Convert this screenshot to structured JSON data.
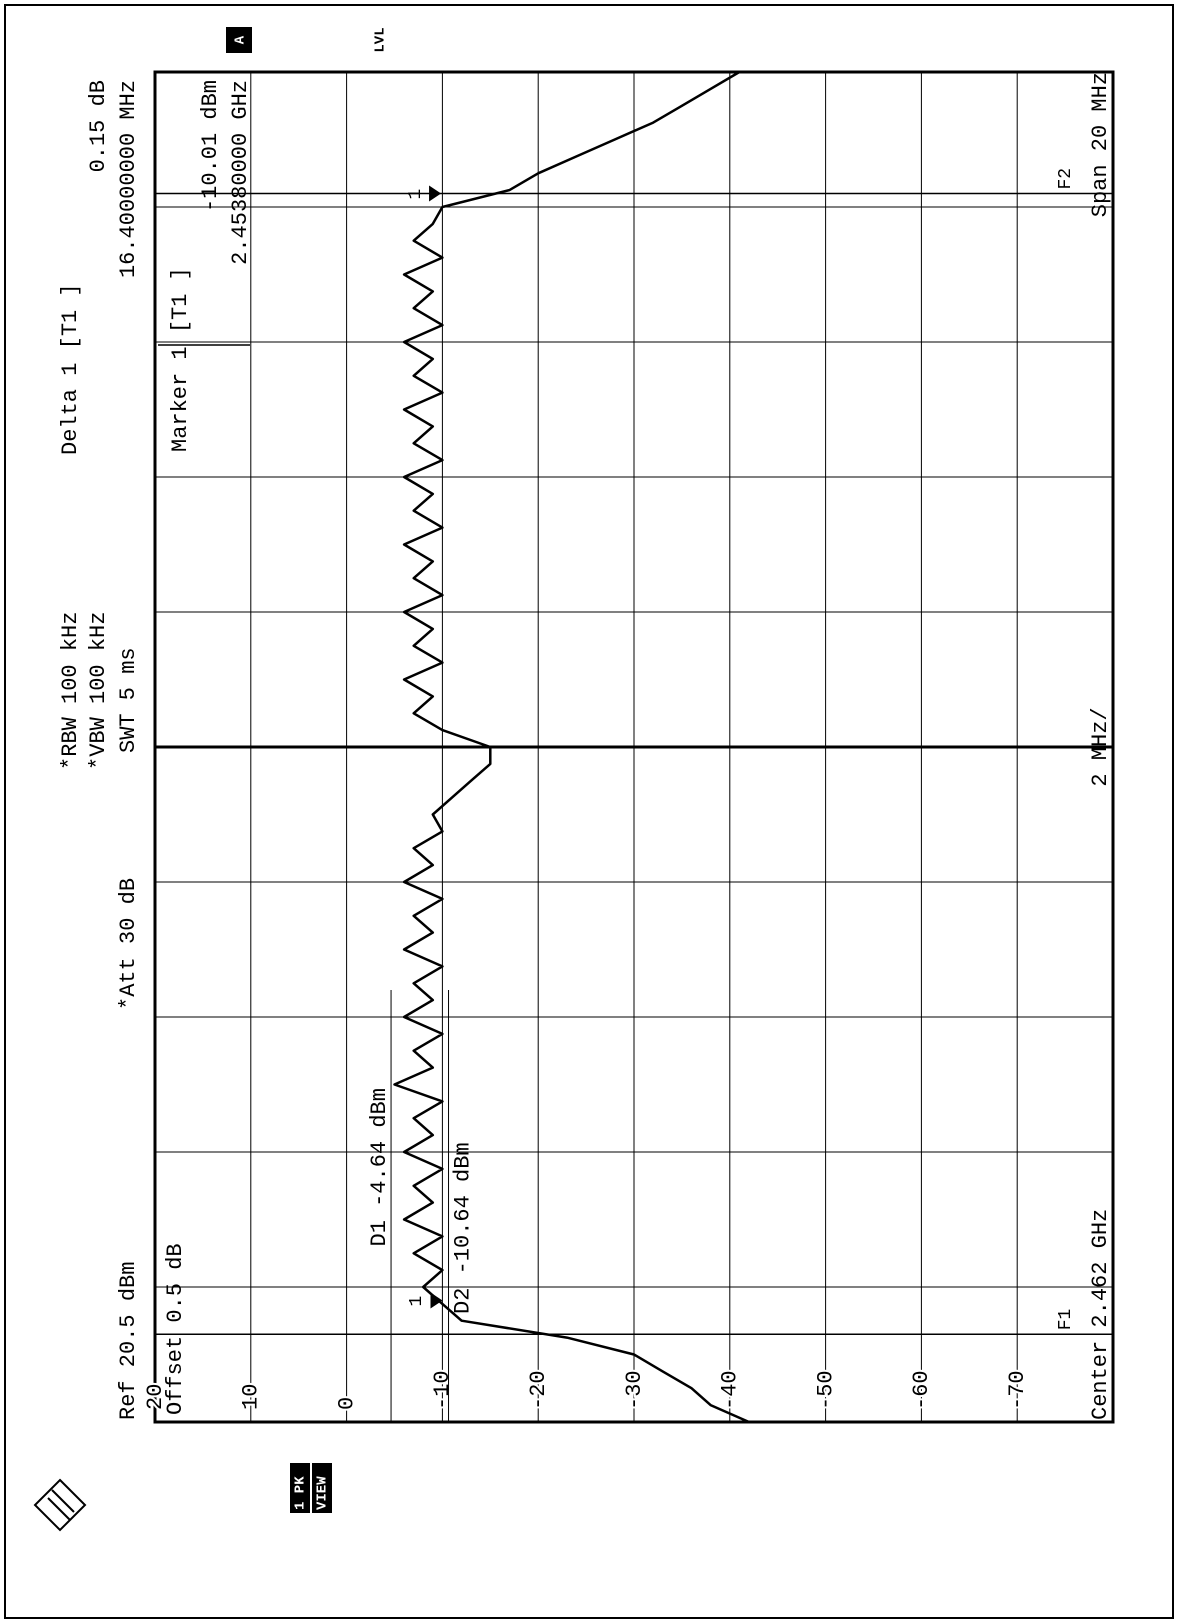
{
  "chart_data": {
    "type": "line",
    "ref_level": "Ref 20.5 dBm",
    "offset": "Offset 0.5 dB",
    "attenuation": "*Att 30 dB",
    "rbw": "*RBW 100 kHz",
    "vbw": "*VBW 100 kHz",
    "sweep_time": "SWT 5 ms",
    "delta_marker": {
      "title": "Delta 1 [T1 ]",
      "level": "0.15 dB",
      "frequency": "16.40000000 MHz"
    },
    "marker_readout": {
      "title": "Marker 1 [T1 ]",
      "level": "-10.01 dBm",
      "frequency": "2.45380000 GHz"
    },
    "center": "Center 2.462 GHz",
    "scale": "2 MHz/",
    "span": "Span 20 MHz",
    "screen": "A",
    "level_flag": "LVL",
    "trace": "1 PK",
    "trace_mode": "VIEW",
    "markers": [
      {
        "label": "1",
        "x": 2.4538,
        "y": -10.01
      },
      {
        "label": "1",
        "x": 2.4702,
        "y": -9.86
      }
    ],
    "display_lines": [
      {
        "label": "D1 -4.64 dBm",
        "value": -4.64
      },
      {
        "label": "D2 -10.64 dBm",
        "value": -10.64
      }
    ],
    "frequency_lines": [
      {
        "label": "F1",
        "value": 2.4533
      },
      {
        "label": "F2",
        "value": 2.4702
      }
    ],
    "xlim": [
      2.452,
      2.472
    ],
    "ylim": [
      -80,
      20
    ],
    "yticks": [
      20,
      10,
      0,
      -10,
      -20,
      -30,
      -40,
      -50,
      -60,
      -70
    ],
    "grid": true,
    "color": "#000000",
    "x": [
      2.452,
      2.45225,
      2.4525,
      2.45275,
      2.453,
      2.45325,
      2.4535,
      2.45375,
      2.454,
      2.45425,
      2.4545,
      2.45475,
      2.455,
      2.45525,
      2.4555,
      2.45575,
      2.456,
      2.45625,
      2.4565,
      2.45675,
      2.457,
      2.45725,
      2.4575,
      2.45775,
      2.458,
      2.45825,
      2.4585,
      2.45875,
      2.459,
      2.45925,
      2.4595,
      2.45975,
      2.46,
      2.46025,
      2.4605,
      2.46075,
      2.461,
      2.46125,
      2.4615,
      2.46175,
      2.462,
      2.46225,
      2.4625,
      2.46275,
      2.463,
      2.46325,
      2.4635,
      2.46375,
      2.464,
      2.46425,
      2.4645,
      2.46475,
      2.465,
      2.46525,
      2.4655,
      2.46575,
      2.466,
      2.46625,
      2.4665,
      2.46675,
      2.467,
      2.46725,
      2.4675,
      2.46775,
      2.468,
      2.46825,
      2.4685,
      2.46875,
      2.469,
      2.46925,
      2.4695,
      2.46975,
      2.47,
      2.47025,
      2.4705,
      2.47075,
      2.471,
      2.47125,
      2.4715,
      2.47175,
      2.472
    ],
    "values": [
      -42,
      -38,
      -36,
      -33,
      -30,
      -23,
      -12,
      -10,
      -8,
      -10,
      -7,
      -10,
      -6,
      -9,
      -7,
      -10,
      -6,
      -9,
      -7,
      -10,
      -5,
      -9,
      -7,
      -10,
      -6,
      -9,
      -7,
      -10,
      -6,
      -9,
      -7,
      -10,
      -6,
      -9,
      -7,
      -10,
      -9,
      -11,
      -13,
      -15,
      -15,
      -10,
      -7,
      -9,
      -6,
      -10,
      -7,
      -9,
      -6,
      -10,
      -7,
      -9,
      -6,
      -10,
      -7,
      -9,
      -6,
      -10,
      -7,
      -9,
      -6,
      -10,
      -7,
      -9,
      -6,
      -10,
      -7,
      -9,
      -6,
      -10,
      -7,
      -9,
      -10,
      -17,
      -20,
      -24,
      -28,
      -32,
      -35,
      -38,
      -41
    ]
  }
}
